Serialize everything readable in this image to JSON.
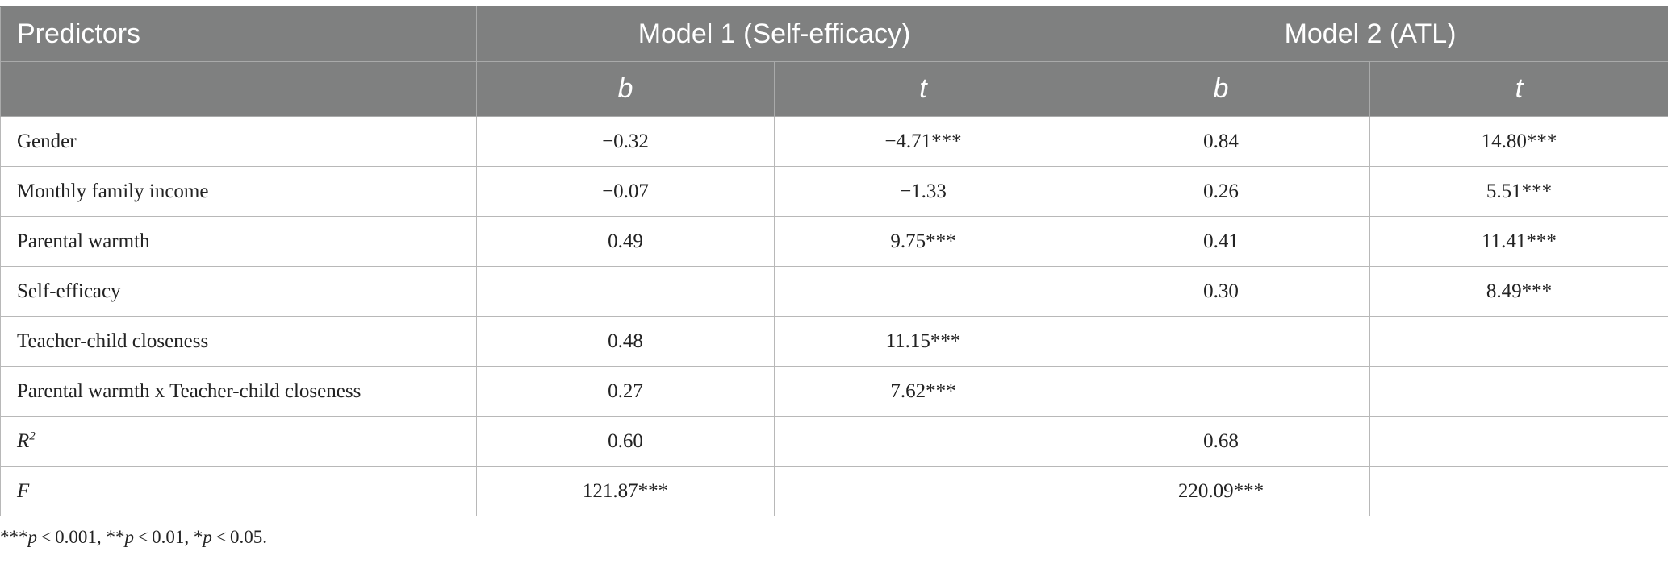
{
  "header": {
    "predictors": "Predictors",
    "model1": "Model 1 (Self-efficacy)",
    "model2": "Model 2 (ATL)",
    "sub": {
      "b1": "b",
      "t1": "t",
      "b2": "b",
      "t2": "t"
    }
  },
  "rows": [
    {
      "label": "Gender",
      "m1_b": "−0.32",
      "m1_t": "−4.71***",
      "m2_b": "0.84",
      "m2_t": "14.80***"
    },
    {
      "label": "Monthly family income",
      "m1_b": "−0.07",
      "m1_t": "−1.33",
      "m2_b": "0.26",
      "m2_t": "5.51***"
    },
    {
      "label": "Parental warmth",
      "m1_b": "0.49",
      "m1_t": "9.75***",
      "m2_b": "0.41",
      "m2_t": "11.41***"
    },
    {
      "label": "Self-efficacy",
      "m1_b": "",
      "m1_t": "",
      "m2_b": "0.30",
      "m2_t": "8.49***"
    },
    {
      "label": "Teacher-child closeness",
      "m1_b": "0.48",
      "m1_t": "11.15***",
      "m2_b": "",
      "m2_t": ""
    },
    {
      "label": "Parental warmth x Teacher-child closeness",
      "m1_b": "0.27",
      "m1_t": "7.62***",
      "m2_b": "",
      "m2_t": ""
    },
    {
      "label_main": "R",
      "label_sup": "2",
      "m1_b": "0.60",
      "m1_t": "",
      "m2_b": "0.68",
      "m2_t": ""
    },
    {
      "label": "F",
      "m1_b": "121.87***",
      "m1_t": "",
      "m2_b": "220.09***",
      "m2_t": ""
    }
  ],
  "footnote": {
    "s1_stars": "***",
    "s1_p": "p",
    "s1_rest": " < 0.001, ",
    "s2_stars": "**",
    "s2_p": "p",
    "s2_rest": " < 0.01, ",
    "s3_stars": "*",
    "s3_p": "p",
    "s3_rest": " < 0.05."
  }
}
